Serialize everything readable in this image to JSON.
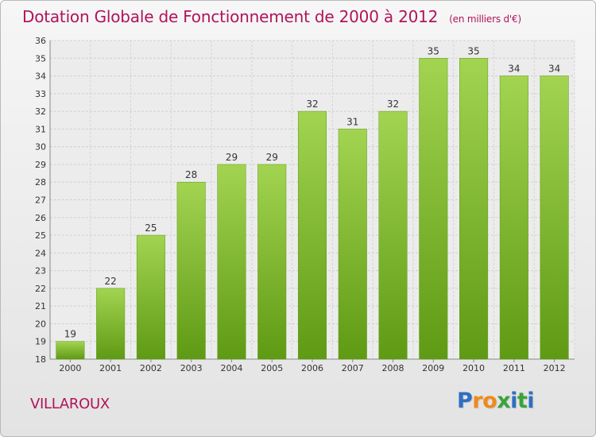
{
  "chart_data": {
    "type": "bar",
    "title": "Dotation Globale de Fonctionnement de 2000 à 2012",
    "unit": "(en milliers d'€)",
    "categories": [
      "2000",
      "2001",
      "2002",
      "2003",
      "2004",
      "2005",
      "2006",
      "2007",
      "2008",
      "2009",
      "2010",
      "2011",
      "2012"
    ],
    "values": [
      19,
      22,
      25,
      28,
      29,
      29,
      32,
      31,
      32,
      35,
      35,
      34,
      34
    ],
    "ylim": [
      18,
      36
    ],
    "yticks": [
      18,
      19,
      20,
      21,
      22,
      23,
      24,
      25,
      26,
      27,
      28,
      29,
      30,
      31,
      32,
      33,
      34,
      35,
      36
    ],
    "grid": true,
    "bar_color": "#7ab52a",
    "bar_color_light": "#a2d451",
    "bar_color_dark": "#5f9a14",
    "title_color": "#b0145a"
  },
  "commune": "VILLAROUX",
  "logo": {
    "letters": [
      "P",
      "r",
      "o",
      "x",
      "i",
      "t",
      "i"
    ],
    "colors": [
      "#2f6fc2",
      "#f08a1a",
      "#f08a1a",
      "#3ba33b",
      "#2f6fc2",
      "#3ba33b",
      "#2f6fc2"
    ]
  }
}
